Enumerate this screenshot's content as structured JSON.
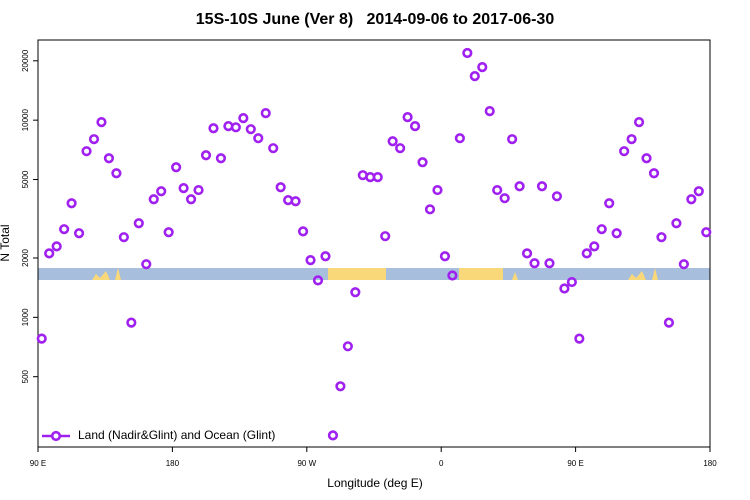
{
  "chart_data": {
    "type": "scatter",
    "title": "15S-10S June (Ver 8)   2014-09-06 to 2017-06-30",
    "x_label": "Longitude (deg E)",
    "y_label": "N Total",
    "xlim": [
      90,
      540
    ],
    "xticks": [
      {
        "value": 90,
        "label": "90 E"
      },
      {
        "value": 180,
        "label": "180"
      },
      {
        "value": 270,
        "label": "90 W"
      },
      {
        "value": 360,
        "label": "0"
      },
      {
        "value": 450,
        "label": "90 E"
      },
      {
        "value": 540,
        "label": "180"
      }
    ],
    "ylim": [
      220,
      25500
    ],
    "log_scale": true,
    "yticks": [
      500,
      1000,
      2000,
      5000,
      10000,
      20000
    ],
    "legend": "bottom-left",
    "series": [
      {
        "name": "Land (Nadir&Glint) and Ocean (Glint)",
        "color": "#a020f0",
        "x": [
          92.5,
          97.5,
          102.5,
          107.5,
          112.5,
          117.5,
          122.5,
          127.5,
          132.5,
          137.5,
          142.5,
          147.5,
          152.5,
          157.5,
          162.5,
          167.5,
          172.5,
          177.5,
          182.5,
          187.5,
          192.5,
          197.5,
          202.5,
          207.5,
          212.5,
          217.5,
          222.5,
          227.5,
          232.5,
          237.5,
          242.5,
          247.5,
          252.5,
          257.5,
          262.5,
          267.5,
          272.5,
          277.5,
          282.5,
          287.5,
          292.5,
          297.5,
          302.5,
          307.5,
          312.5,
          317.5,
          322.5,
          327.5,
          332.5,
          337.5,
          342.5,
          347.5,
          352.5,
          357.5,
          362.5,
          367.5,
          372.5,
          377.5,
          382.5,
          387.5,
          392.5,
          397.5,
          402.5,
          407.5,
          412.5,
          417.5,
          422.5,
          427.5,
          432.5,
          437.5,
          442.5,
          447.5,
          452.5,
          457.5,
          462.5,
          467.5,
          472.5,
          477.5,
          482.5,
          487.5,
          492.5,
          497.5,
          502.5,
          507.5,
          512.5,
          517.5,
          522.5,
          527.5,
          532.5,
          537.5
        ],
        "values": [
          780,
          2110,
          2290,
          2800,
          3790,
          2670,
          6960,
          8010,
          9770,
          6410,
          5380,
          2550,
          940,
          3000,
          1860,
          3970,
          4360,
          2700,
          5770,
          4520,
          3970,
          4420,
          6640,
          9100,
          6410,
          9330,
          9200,
          10240,
          9000,
          8100,
          10860,
          7210,
          4570,
          3930,
          3880,
          2730,
          1950,
          1540,
          2040,
          252,
          447,
          713,
          1340,
          5260,
          5140,
          5140,
          2580,
          7820,
          7210,
          10360,
          9330,
          6120,
          3530,
          4420,
          2040,
          1630,
          8100,
          21900,
          16720,
          18580,
          11110,
          4420,
          4020,
          8010,
          4620,
          2110,
          1880,
          4620,
          1880,
          4110,
          1400,
          1510,
          780,
          2110,
          2290,
          2800,
          3790,
          2670,
          6960,
          8010,
          9770,
          6410,
          5380,
          2550,
          940,
          3000,
          1860,
          3970,
          4360,
          2700
        ]
      }
    ]
  }
}
